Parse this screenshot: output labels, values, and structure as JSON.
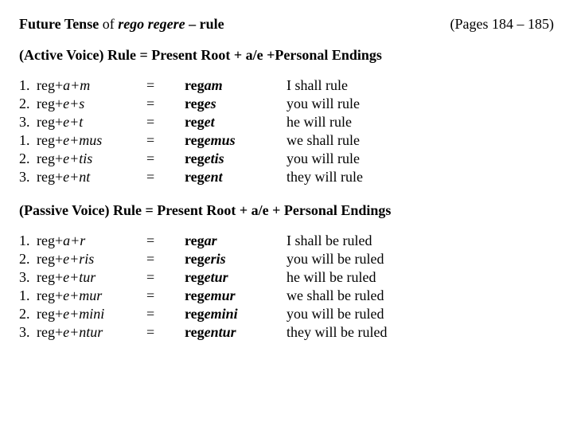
{
  "header": {
    "left_prefix": "Future Tense",
    "left_of": "of",
    "left_verb": "rego regere",
    "left_dash": "– rule",
    "pages": "(Pages 184 – 185)"
  },
  "active": {
    "rule": "(Active Voice) Rule = Present Root + a/e +Personal Endings",
    "rows": [
      {
        "n": "1.",
        "root": "reg",
        "v1": "a",
        "v2": "m",
        "stem": "reg",
        "suf": "am",
        "trans": "I shall rule"
      },
      {
        "n": "2.",
        "root": "reg",
        "v1": "e",
        "v2": "s",
        "stem": "reg",
        "suf": "es",
        "trans": "you will rule"
      },
      {
        "n": "3.",
        "root": "reg",
        "v1": "e",
        "v2": "t",
        "stem": "reg",
        "suf": "et",
        "trans": "he will rule"
      },
      {
        "n": "1.",
        "root": "reg",
        "v1": "e",
        "v2": "mus",
        "stem": "reg",
        "suf": "emus",
        "trans": "we shall rule"
      },
      {
        "n": "2.",
        "root": "reg",
        "v1": "e",
        "v2": "tis",
        "stem": "reg",
        "suf": "etis",
        "trans": "you will rule"
      },
      {
        "n": "3.",
        "root": "reg",
        "v1": "e",
        "v2": "nt",
        "stem": "reg",
        "suf": "ent",
        "trans": "they will rule"
      }
    ]
  },
  "passive": {
    "rule": "(Passive Voice) Rule = Present Root + a/e + Personal Endings",
    "rows": [
      {
        "n": "1.",
        "root": "reg",
        "v1": "a",
        "v2": "r",
        "stem": "reg",
        "suf": "ar",
        "trans": "I shall be ruled"
      },
      {
        "n": "2.",
        "root": "reg",
        "v1": "e",
        "v2": "ris",
        "stem": "reg",
        "suf": "eris",
        "trans": "you will be ruled"
      },
      {
        "n": "3.",
        "root": "reg",
        "v1": "e",
        "v2": "tur",
        "stem": "reg",
        "suf": "etur",
        "trans": "he will be ruled"
      },
      {
        "n": "1.",
        "root": "reg",
        "v1": "e",
        "v2": "mur",
        "stem": "reg",
        "suf": "emur",
        "trans": "we shall be ruled"
      },
      {
        "n": "2.",
        "root": "reg",
        "v1": "e",
        "v2": "mini",
        "stem": "reg",
        "suf": "emini",
        "trans": "you will be ruled"
      },
      {
        "n": "3.",
        "root": "reg",
        "v1": "e",
        "v2": "ntur",
        "stem": "reg",
        "suf": "entur",
        "trans": "they will be ruled"
      }
    ]
  },
  "eq": "="
}
